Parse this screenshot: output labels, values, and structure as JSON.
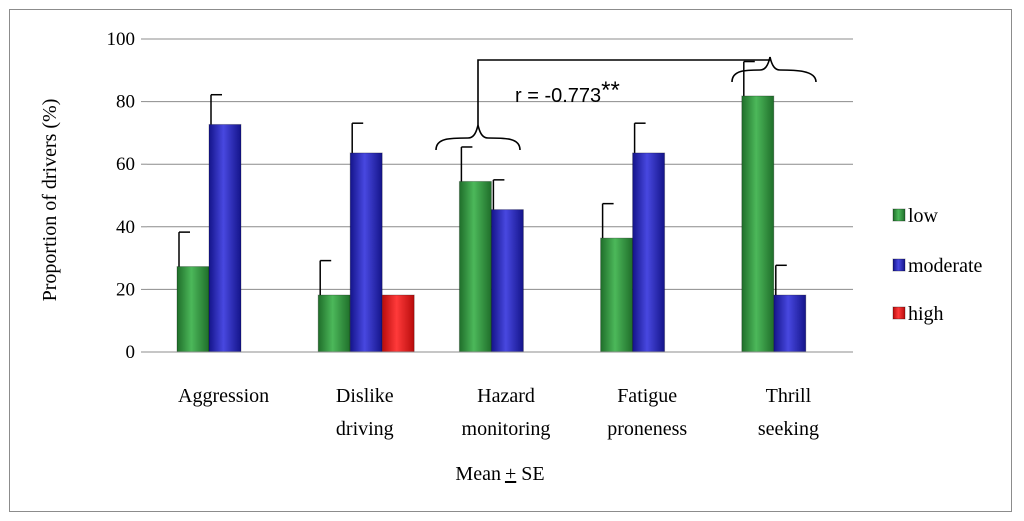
{
  "chart_data": {
    "type": "bar",
    "categories": [
      [
        "Aggression"
      ],
      [
        "Dislike",
        "driving"
      ],
      [
        "Hazard",
        "monitoring"
      ],
      [
        "Fatigue",
        "proneness"
      ],
      [
        "Thrill",
        "seeking"
      ]
    ],
    "series": [
      {
        "name": "low",
        "values": [
          27.3,
          18.2,
          54.5,
          36.4,
          81.8
        ],
        "errors": [
          11,
          11,
          11,
          11,
          11
        ],
        "color": "#2e8b3a"
      },
      {
        "name": "moderate",
        "values": [
          72.7,
          63.6,
          45.5,
          63.6,
          18.2
        ],
        "errors": [
          9.5,
          9.5,
          9.5,
          9.5,
          9.5
        ],
        "color": "#2a2ab8"
      },
      {
        "name": "high",
        "values": [
          null,
          18.2,
          null,
          null,
          null
        ],
        "errors": [
          null,
          null,
          null,
          null,
          null
        ],
        "color": "#e01818"
      }
    ],
    "ylabel": "Proportion of drivers (%)",
    "xlabel": "Mean",
    "xlabel_pm": "+",
    "xlabel_suffix": " SE",
    "ylim": [
      0,
      100
    ],
    "yticks": [
      "0",
      "20",
      "40",
      "60",
      "80",
      "100"
    ],
    "grid": true,
    "legend_position": "right",
    "annotation": {
      "text": "r = -0.773",
      "stars": "**"
    }
  }
}
